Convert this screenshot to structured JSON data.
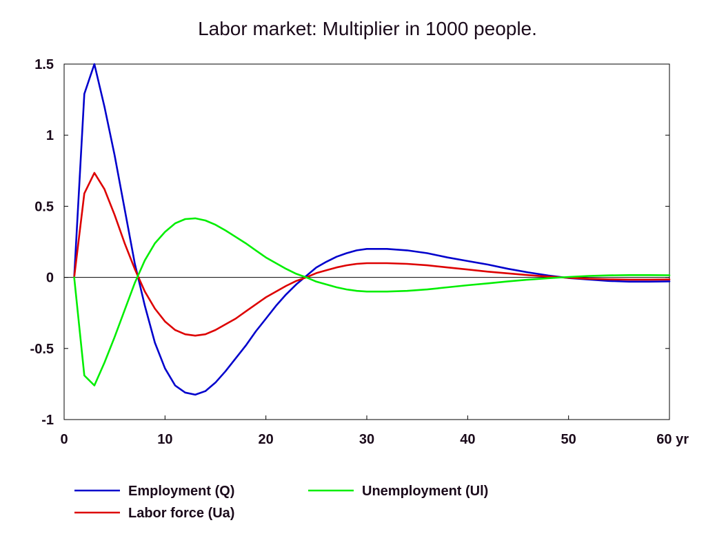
{
  "chart_data": {
    "type": "line",
    "title": "Labor market: Multiplier in 1000 people.",
    "xlabel": "",
    "ylabel": "",
    "xlim": [
      0,
      60
    ],
    "ylim": [
      -1,
      1.5
    ],
    "x_ticks": [
      0,
      10,
      20,
      30,
      40,
      50,
      60
    ],
    "x_tick_labels": [
      "0",
      "10",
      "20",
      "30",
      "40",
      "50",
      "60 yr"
    ],
    "y_ticks": [
      1.5,
      1,
      0.5,
      0,
      -0.5,
      -1
    ],
    "y_tick_labels": [
      "1.5",
      "1",
      "0.5",
      "0",
      "-0.5",
      "-1"
    ],
    "grid": false,
    "zero_line": true,
    "legend_position": "bottom",
    "series": [
      {
        "name": "Employment (Q)",
        "color": "#0000cc",
        "points": [
          [
            1,
            0
          ],
          [
            2,
            1.29
          ],
          [
            3,
            1.5
          ],
          [
            4,
            1.2
          ],
          [
            5,
            0.86
          ],
          [
            6,
            0.48
          ],
          [
            7,
            0.1
          ],
          [
            8,
            -0.2
          ],
          [
            9,
            -0.46
          ],
          [
            10,
            -0.64
          ],
          [
            11,
            -0.76
          ],
          [
            12,
            -0.81
          ],
          [
            13,
            -0.825
          ],
          [
            14,
            -0.8
          ],
          [
            15,
            -0.74
          ],
          [
            16,
            -0.66
          ],
          [
            17,
            -0.57
          ],
          [
            18,
            -0.48
          ],
          [
            19,
            -0.38
          ],
          [
            20,
            -0.29
          ],
          [
            21,
            -0.2
          ],
          [
            22,
            -0.12
          ],
          [
            23,
            -0.05
          ],
          [
            24,
            0.01
          ],
          [
            25,
            0.07
          ],
          [
            26,
            0.11
          ],
          [
            27,
            0.145
          ],
          [
            28,
            0.17
          ],
          [
            29,
            0.19
          ],
          [
            30,
            0.2
          ],
          [
            32,
            0.2
          ],
          [
            34,
            0.19
          ],
          [
            36,
            0.17
          ],
          [
            38,
            0.14
          ],
          [
            40,
            0.115
          ],
          [
            42,
            0.09
          ],
          [
            44,
            0.06
          ],
          [
            46,
            0.035
          ],
          [
            48,
            0.013
          ],
          [
            50,
            -0.005
          ],
          [
            52,
            -0.015
          ],
          [
            54,
            -0.025
          ],
          [
            56,
            -0.03
          ],
          [
            58,
            -0.03
          ],
          [
            60,
            -0.028
          ]
        ]
      },
      {
        "name": "Labor force (Ua)",
        "color": "#dd0000",
        "points": [
          [
            1,
            0
          ],
          [
            2,
            0.59
          ],
          [
            3,
            0.735
          ],
          [
            4,
            0.62
          ],
          [
            5,
            0.44
          ],
          [
            6,
            0.24
          ],
          [
            7,
            0.06
          ],
          [
            8,
            -0.1
          ],
          [
            9,
            -0.22
          ],
          [
            10,
            -0.31
          ],
          [
            11,
            -0.37
          ],
          [
            12,
            -0.4
          ],
          [
            13,
            -0.41
          ],
          [
            14,
            -0.4
          ],
          [
            15,
            -0.37
          ],
          [
            16,
            -0.33
          ],
          [
            17,
            -0.29
          ],
          [
            18,
            -0.24
          ],
          [
            19,
            -0.19
          ],
          [
            20,
            -0.14
          ],
          [
            21,
            -0.1
          ],
          [
            22,
            -0.06
          ],
          [
            23,
            -0.025
          ],
          [
            24,
            0
          ],
          [
            25,
            0.03
          ],
          [
            26,
            0.05
          ],
          [
            27,
            0.07
          ],
          [
            28,
            0.085
          ],
          [
            29,
            0.095
          ],
          [
            30,
            0.1
          ],
          [
            32,
            0.1
          ],
          [
            34,
            0.095
          ],
          [
            36,
            0.085
          ],
          [
            38,
            0.07
          ],
          [
            40,
            0.055
          ],
          [
            42,
            0.04
          ],
          [
            44,
            0.028
          ],
          [
            46,
            0.016
          ],
          [
            48,
            0.006
          ],
          [
            50,
            -0.003
          ],
          [
            52,
            -0.01
          ],
          [
            54,
            -0.014
          ],
          [
            56,
            -0.016
          ],
          [
            58,
            -0.016
          ],
          [
            60,
            -0.015
          ]
        ]
      },
      {
        "name": "Unemployment (Ul)",
        "color": "#00ee00",
        "points": [
          [
            1,
            0
          ],
          [
            2,
            -0.69
          ],
          [
            3,
            -0.76
          ],
          [
            4,
            -0.6
          ],
          [
            5,
            -0.42
          ],
          [
            6,
            -0.23
          ],
          [
            7,
            -0.04
          ],
          [
            8,
            0.12
          ],
          [
            9,
            0.24
          ],
          [
            10,
            0.32
          ],
          [
            11,
            0.38
          ],
          [
            12,
            0.41
          ],
          [
            13,
            0.415
          ],
          [
            14,
            0.4
          ],
          [
            15,
            0.37
          ],
          [
            16,
            0.33
          ],
          [
            17,
            0.285
          ],
          [
            18,
            0.24
          ],
          [
            19,
            0.19
          ],
          [
            20,
            0.14
          ],
          [
            21,
            0.1
          ],
          [
            22,
            0.06
          ],
          [
            23,
            0.025
          ],
          [
            24,
            0
          ],
          [
            25,
            -0.03
          ],
          [
            26,
            -0.05
          ],
          [
            27,
            -0.07
          ],
          [
            28,
            -0.085
          ],
          [
            29,
            -0.095
          ],
          [
            30,
            -0.1
          ],
          [
            32,
            -0.1
          ],
          [
            34,
            -0.095
          ],
          [
            36,
            -0.085
          ],
          [
            38,
            -0.07
          ],
          [
            40,
            -0.055
          ],
          [
            42,
            -0.042
          ],
          [
            44,
            -0.028
          ],
          [
            46,
            -0.016
          ],
          [
            48,
            -0.006
          ],
          [
            50,
            0.003
          ],
          [
            52,
            0.01
          ],
          [
            54,
            0.014
          ],
          [
            56,
            0.016
          ],
          [
            58,
            0.016
          ],
          [
            60,
            0.015
          ]
        ]
      }
    ]
  }
}
